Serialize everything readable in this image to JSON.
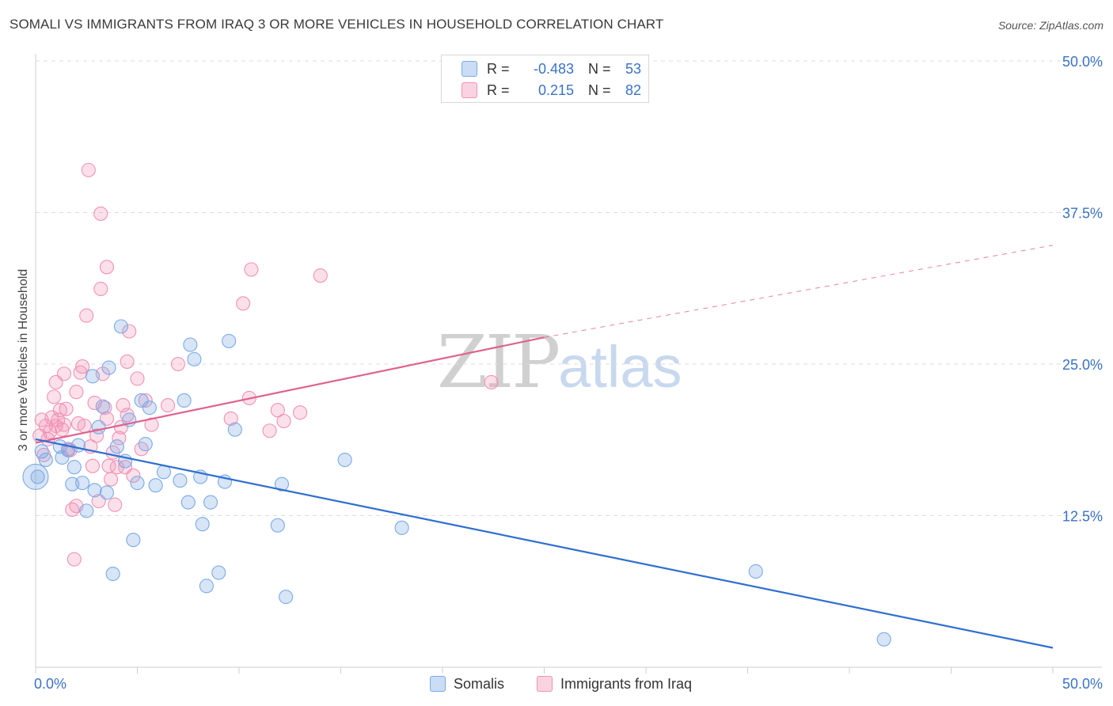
{
  "header": {
    "title": "SOMALI VS IMMIGRANTS FROM IRAQ 3 OR MORE VEHICLES IN HOUSEHOLD CORRELATION CHART",
    "source": "Source: ZipAtlas.com"
  },
  "watermark": {
    "zip": "ZIP",
    "atlas": "atlas"
  },
  "legend": {
    "rows": [
      {
        "r_label": "R =",
        "r_value": "-0.483",
        "n_label": "N =",
        "n_value": "53",
        "color": "#7aaae6"
      },
      {
        "r_label": "R =",
        "r_value": "0.215",
        "n_label": "N =",
        "n_value": "82",
        "color": "#f291b3"
      }
    ]
  },
  "bottom_legend": {
    "items": [
      {
        "label": "Somalis",
        "color": "#7aaae6"
      },
      {
        "label": "Immigrants from Iraq",
        "color": "#f291b3"
      }
    ]
  },
  "chart_data": {
    "type": "scatter",
    "title": "SOMALI VS IMMIGRANTS FROM IRAQ 3 OR MORE VEHICLES IN HOUSEHOLD CORRELATION CHART",
    "xlabel": "",
    "ylabel": "3 or more Vehicles in Household",
    "xlim": [
      0,
      50
    ],
    "ylim": [
      0,
      50
    ],
    "x_tick_labels": [
      "0.0%",
      "50.0%"
    ],
    "y_ticks": [
      12.5,
      25.0,
      37.5,
      50.0
    ],
    "y_tick_labels": [
      "12.5%",
      "25.0%",
      "37.5%",
      "50.0%"
    ],
    "colors": {
      "somalis": "#7aaae6",
      "somalis_line": "#2e6fd0",
      "iraq": "#f291b3",
      "iraq_line": "#e0628e",
      "tick_label": "#3b72c4"
    },
    "series": [
      {
        "name": "Somalis",
        "r": -0.483,
        "n": 53,
        "trend": {
          "x": [
            0,
            50
          ],
          "y": [
            18.8,
            1.6
          ]
        },
        "points": [
          [
            0.1,
            15.7
          ],
          [
            0.3,
            17.8
          ],
          [
            0.5,
            17.1
          ],
          [
            1.2,
            18.2
          ],
          [
            1.3,
            17.3
          ],
          [
            1.6,
            17.9
          ],
          [
            1.8,
            15.1
          ],
          [
            1.9,
            16.5
          ],
          [
            2.1,
            18.3
          ],
          [
            2.3,
            15.2
          ],
          [
            2.5,
            12.9
          ],
          [
            2.8,
            24.0
          ],
          [
            2.9,
            14.6
          ],
          [
            3.1,
            19.8
          ],
          [
            3.3,
            21.5
          ],
          [
            3.5,
            14.4
          ],
          [
            3.6,
            24.7
          ],
          [
            3.8,
            7.7
          ],
          [
            4.0,
            18.2
          ],
          [
            4.2,
            28.1
          ],
          [
            4.4,
            17.0
          ],
          [
            4.6,
            20.4
          ],
          [
            4.8,
            10.5
          ],
          [
            5.0,
            15.2
          ],
          [
            5.2,
            22.0
          ],
          [
            5.4,
            18.4
          ],
          [
            5.6,
            21.4
          ],
          [
            5.9,
            15.0
          ],
          [
            6.3,
            16.1
          ],
          [
            7.1,
            15.4
          ],
          [
            7.3,
            22.0
          ],
          [
            7.5,
            13.6
          ],
          [
            7.6,
            26.6
          ],
          [
            7.8,
            25.4
          ],
          [
            8.1,
            15.7
          ],
          [
            8.2,
            11.8
          ],
          [
            8.4,
            6.7
          ],
          [
            8.6,
            13.6
          ],
          [
            9.0,
            7.8
          ],
          [
            9.3,
            15.3
          ],
          [
            9.5,
            26.9
          ],
          [
            9.8,
            19.6
          ],
          [
            11.9,
            11.7
          ],
          [
            12.1,
            15.1
          ],
          [
            12.3,
            5.8
          ],
          [
            15.2,
            17.1
          ],
          [
            18.0,
            11.5
          ],
          [
            35.4,
            7.9
          ],
          [
            41.7,
            2.3
          ]
        ]
      },
      {
        "name": "Immigrants from Iraq",
        "r": 0.215,
        "n": 82,
        "trend": {
          "x": [
            0,
            25
          ],
          "y": [
            18.5,
            27.2
          ]
        },
        "trend_extension": {
          "x": [
            25,
            50
          ],
          "y": [
            27.2,
            34.8
          ]
        },
        "points": [
          [
            0.2,
            19.1
          ],
          [
            0.3,
            20.4
          ],
          [
            0.4,
            17.5
          ],
          [
            0.5,
            19.9
          ],
          [
            0.6,
            18.8
          ],
          [
            0.7,
            19.4
          ],
          [
            0.8,
            20.6
          ],
          [
            0.9,
            22.3
          ],
          [
            1.0,
            19.9
          ],
          [
            1.0,
            23.5
          ],
          [
            1.1,
            20.4
          ],
          [
            1.2,
            21.2
          ],
          [
            1.3,
            19.6
          ],
          [
            1.4,
            20.0
          ],
          [
            1.4,
            24.2
          ],
          [
            1.5,
            21.3
          ],
          [
            1.6,
            18.0
          ],
          [
            1.7,
            17.9
          ],
          [
            1.8,
            13.0
          ],
          [
            1.9,
            8.9
          ],
          [
            2.0,
            13.3
          ],
          [
            2.0,
            22.7
          ],
          [
            2.1,
            20.1
          ],
          [
            2.2,
            24.3
          ],
          [
            2.3,
            24.8
          ],
          [
            2.4,
            19.9
          ],
          [
            2.5,
            29.0
          ],
          [
            2.6,
            41.0
          ],
          [
            2.7,
            18.2
          ],
          [
            2.8,
            16.6
          ],
          [
            2.9,
            21.8
          ],
          [
            3.0,
            19.1
          ],
          [
            3.1,
            13.7
          ],
          [
            3.2,
            31.2
          ],
          [
            3.2,
            37.4
          ],
          [
            3.3,
            24.2
          ],
          [
            3.4,
            21.4
          ],
          [
            3.5,
            20.5
          ],
          [
            3.5,
            33.0
          ],
          [
            3.6,
            16.6
          ],
          [
            3.7,
            15.5
          ],
          [
            3.8,
            17.7
          ],
          [
            3.9,
            13.4
          ],
          [
            4.0,
            16.5
          ],
          [
            4.1,
            18.9
          ],
          [
            4.2,
            19.8
          ],
          [
            4.3,
            21.6
          ],
          [
            4.4,
            16.5
          ],
          [
            4.5,
            25.2
          ],
          [
            4.5,
            20.8
          ],
          [
            4.6,
            27.7
          ],
          [
            4.8,
            15.8
          ],
          [
            5.0,
            23.8
          ],
          [
            5.2,
            18.0
          ],
          [
            5.4,
            22.0
          ],
          [
            5.7,
            20.0
          ],
          [
            6.5,
            21.6
          ],
          [
            7.0,
            25.0
          ],
          [
            9.6,
            20.5
          ],
          [
            10.2,
            30.0
          ],
          [
            10.5,
            22.2
          ],
          [
            10.6,
            32.8
          ],
          [
            11.5,
            19.5
          ],
          [
            11.9,
            21.2
          ],
          [
            12.2,
            20.3
          ],
          [
            13.0,
            21.0
          ],
          [
            14.0,
            32.3
          ],
          [
            22.4,
            23.5
          ]
        ]
      }
    ]
  }
}
